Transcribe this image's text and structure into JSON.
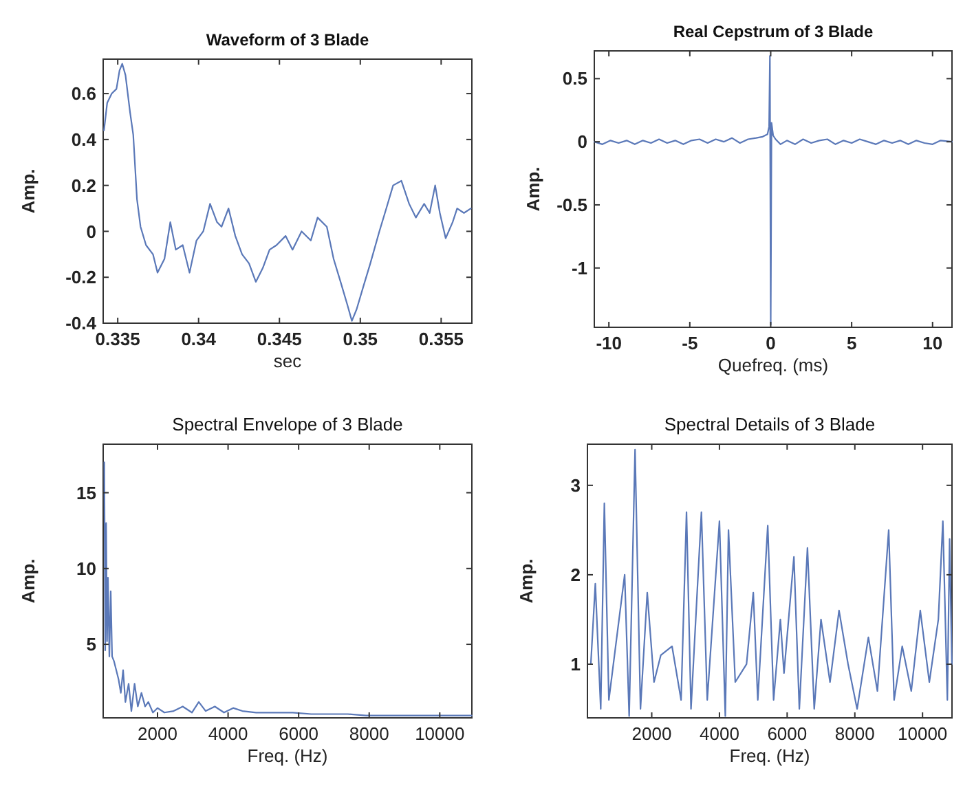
{
  "chart_data": [
    {
      "type": "line",
      "title": "Waveform  of  3 Blade",
      "xlabel": "sec",
      "ylabel": "Amp.",
      "xlim": [
        0.3341,
        0.3569
      ],
      "ylim": [
        -0.4,
        0.75
      ],
      "xticks": [
        0.335,
        0.34,
        0.345,
        0.35,
        0.355
      ],
      "yticks": [
        -0.4,
        -0.2,
        0,
        0.2,
        0.4,
        0.6
      ],
      "grid": false,
      "series": [
        {
          "color": "#5a78b8",
          "x": [
            0.33415,
            0.33435,
            0.33463,
            0.33492,
            0.33511,
            0.33528,
            0.33548,
            0.33576,
            0.33596,
            0.33619,
            0.33641,
            0.33675,
            0.33718,
            0.33746,
            0.33789,
            0.33825,
            0.33859,
            0.33902,
            0.33944,
            0.33987,
            0.34029,
            0.34071,
            0.34114,
            0.34142,
            0.34185,
            0.34227,
            0.34269,
            0.34312,
            0.34354,
            0.34397,
            0.34439,
            0.34482,
            0.34538,
            0.34581,
            0.34637,
            0.34694,
            0.34736,
            0.34793,
            0.34835,
            0.34878,
            0.3492,
            0.34948,
            0.34977,
            0.35019,
            0.35062,
            0.35118,
            0.35161,
            0.35203,
            0.35254,
            0.35302,
            0.35344,
            0.35395,
            0.35429,
            0.35463,
            0.35492,
            0.35528,
            0.35571,
            0.35599,
            0.35641,
            0.35684
          ],
          "values": [
            0.44,
            0.56,
            0.6,
            0.62,
            0.7,
            0.73,
            0.68,
            0.52,
            0.42,
            0.14,
            0.02,
            -0.06,
            -0.1,
            -0.18,
            -0.12,
            0.04,
            -0.08,
            -0.06,
            -0.18,
            -0.04,
            0,
            0.12,
            0.04,
            0.02,
            0.1,
            -0.02,
            -0.1,
            -0.14,
            -0.22,
            -0.16,
            -0.08,
            -0.06,
            -0.02,
            -0.08,
            0,
            -0.04,
            0.06,
            0.02,
            -0.12,
            -0.22,
            -0.32,
            -0.39,
            -0.34,
            -0.24,
            -0.14,
            0,
            0.1,
            0.2,
            0.22,
            0.12,
            0.06,
            0.12,
            0.08,
            0.2,
            0.08,
            -0.03,
            0.04,
            0.1,
            0.08,
            0.1
          ]
        }
      ]
    },
    {
      "type": "line",
      "title": "Real Cepstrum  of 3 Blade",
      "xlabel": "Quefreq. (ms)",
      "ylabel": "Amp.",
      "xlim": [
        -10.9,
        11.2
      ],
      "ylim": [
        -1.47,
        0.72
      ],
      "xticks": [
        -10,
        -5,
        0,
        5,
        10
      ],
      "yticks": [
        -1,
        -0.5,
        0,
        0.5
      ],
      "grid": false,
      "series": [
        {
          "color": "#5a78b8",
          "x": [
            -10.9,
            -10.4,
            -9.9,
            -9.4,
            -8.9,
            -8.4,
            -7.9,
            -7.4,
            -6.9,
            -6.4,
            -5.9,
            -5.4,
            -4.9,
            -4.4,
            -3.9,
            -3.4,
            -2.9,
            -2.4,
            -1.9,
            -1.4,
            -0.9,
            -0.5,
            -0.2,
            -0.1,
            -0.05,
            0,
            0.05,
            0.15,
            0.3,
            0.6,
            1,
            1.5,
            2,
            2.5,
            3,
            3.5,
            4,
            4.5,
            5,
            5.5,
            6,
            6.5,
            7,
            7.5,
            8,
            8.5,
            9,
            9.5,
            10,
            10.5,
            11.2
          ],
          "values": [
            0,
            -0.02,
            0.01,
            -0.01,
            0.01,
            -0.02,
            0.01,
            -0.01,
            0.02,
            -0.01,
            0.01,
            -0.02,
            0.01,
            0.02,
            -0.01,
            0.02,
            0,
            0.03,
            -0.01,
            0.02,
            0.03,
            0.04,
            0.06,
            0.12,
            0.68,
            -1.45,
            0.15,
            0.05,
            0.02,
            -0.02,
            0.01,
            -0.02,
            0.02,
            -0.01,
            0.01,
            0.02,
            -0.02,
            0.01,
            -0.01,
            0.02,
            0,
            -0.02,
            0.01,
            -0.01,
            0.01,
            -0.02,
            0.01,
            -0.01,
            -0.02,
            0.01,
            0
          ]
        }
      ]
    },
    {
      "type": "line",
      "title": "Spectral Envelope  of 3 Blade",
      "xlabel": "Freq. (Hz)",
      "ylabel": "Amp.",
      "xlim": [
        460,
        10910
      ],
      "ylim": [
        0.15,
        18.2
      ],
      "xticks": [
        2000,
        4000,
        6000,
        8000,
        10000
      ],
      "yticks": [
        5,
        10,
        15
      ],
      "grid": false,
      "series": [
        {
          "color": "#5a78b8",
          "x": [
            492,
            518,
            544,
            570,
            596,
            635,
            674,
            713,
            765,
            830,
            895,
            960,
            1025,
            1090,
            1181,
            1259,
            1350,
            1441,
            1545,
            1649,
            1740,
            1870,
            2000,
            2195,
            2455,
            2715,
            2975,
            3170,
            3365,
            3625,
            3885,
            4145,
            4405,
            4795,
            5315,
            5835,
            6355,
            6875,
            7395,
            7915,
            8565,
            9215,
            9865,
            10515,
            10905
          ],
          "values": [
            17,
            4.6,
            13,
            5.2,
            9.4,
            4.2,
            8.5,
            4.2,
            3.9,
            3.3,
            2.7,
            1.8,
            3.3,
            1.2,
            2.4,
            0.6,
            2.4,
            0.9,
            1.8,
            0.9,
            1.2,
            0.5,
            0.8,
            0.5,
            0.6,
            0.9,
            0.5,
            1.2,
            0.6,
            0.9,
            0.5,
            0.8,
            0.6,
            0.5,
            0.5,
            0.5,
            0.4,
            0.4,
            0.4,
            0.3,
            0.3,
            0.3,
            0.3,
            0.3,
            0.3
          ]
        }
      ]
    },
    {
      "type": "line",
      "title": "Spectral Details  of 3 Blade",
      "xlabel": "Freq. (Hz)",
      "ylabel": "Amp.",
      "xlim": [
        100,
        10870
      ],
      "ylim": [
        0.4,
        3.46
      ],
      "xticks": [
        2000,
        4000,
        6000,
        8000,
        10000
      ],
      "yticks": [
        1,
        2,
        3
      ],
      "grid": false,
      "series": [
        {
          "color": "#5a78b8",
          "x": [
            200,
            333,
            493,
            600,
            733,
            933,
            1200,
            1333,
            1507,
            1667,
            1867,
            2067,
            2267,
            2600,
            2867,
            3027,
            3160,
            3467,
            3640,
            4000,
            4173,
            4267,
            4467,
            4800,
            5000,
            5133,
            5427,
            5600,
            5800,
            5907,
            6200,
            6360,
            6600,
            6800,
            7000,
            7267,
            7533,
            7800,
            8067,
            8400,
            8667,
            9000,
            9160,
            9400,
            9667,
            9933,
            10200,
            10467,
            10600,
            10733,
            10800,
            10867
          ],
          "values": [
            1,
            1.9,
            0.5,
            2.8,
            0.6,
            1.2,
            2,
            0.42,
            3.4,
            0.5,
            1.8,
            0.8,
            1.1,
            1.2,
            0.6,
            2.7,
            0.5,
            2.7,
            0.6,
            2.6,
            0.42,
            2.5,
            0.8,
            1,
            1.8,
            0.6,
            2.55,
            0.6,
            1.5,
            0.9,
            2.2,
            0.5,
            2.3,
            0.5,
            1.5,
            0.8,
            1.6,
            1,
            0.5,
            1.3,
            0.7,
            2.5,
            0.6,
            1.2,
            0.7,
            1.6,
            0.8,
            1.5,
            2.6,
            0.6,
            2.4,
            1
          ]
        }
      ]
    }
  ]
}
